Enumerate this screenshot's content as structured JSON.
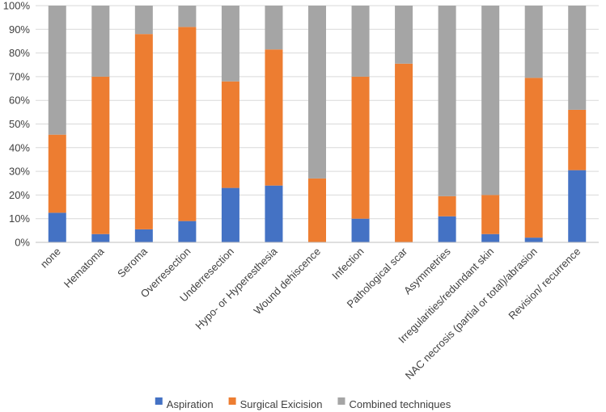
{
  "chart_data": {
    "type": "bar",
    "stacked": true,
    "percent": true,
    "title": "",
    "xlabel": "",
    "ylabel": "",
    "ylim": [
      0,
      100
    ],
    "yticks": [
      "0%",
      "10%",
      "20%",
      "30%",
      "40%",
      "50%",
      "60%",
      "70%",
      "80%",
      "90%",
      "100%"
    ],
    "grid": true,
    "legend_position": "bottom",
    "categories": [
      "none",
      "Hematoma",
      "Seroma",
      "Overresection",
      "Underresection",
      "Hypo- or Hyperesthesia",
      "Wound dehiscence",
      "Infection",
      "Pathological scar",
      "Asymmetries",
      "Irregularities/redundant skin",
      "NAC necrosis (partial or total)/abrasion",
      "Revision/ recurrence"
    ],
    "series": [
      {
        "name": "Aspiration",
        "color": "#4472c4",
        "values": [
          12.5,
          3.5,
          5.5,
          9,
          23,
          24,
          0,
          10,
          0,
          11,
          3.5,
          2,
          30.5
        ]
      },
      {
        "name": "Surgical Exicision",
        "color": "#ed7d31",
        "values": [
          33,
          66.5,
          82.5,
          82,
          45,
          57.5,
          27,
          60,
          75.5,
          8.5,
          16.5,
          67.5,
          25.5
        ]
      },
      {
        "name": "Combined techniques",
        "color": "#a5a5a5",
        "values": [
          54.5,
          30,
          12,
          9,
          32,
          18.5,
          73,
          30,
          24.5,
          80.5,
          80,
          30.5,
          44
        ]
      }
    ]
  }
}
